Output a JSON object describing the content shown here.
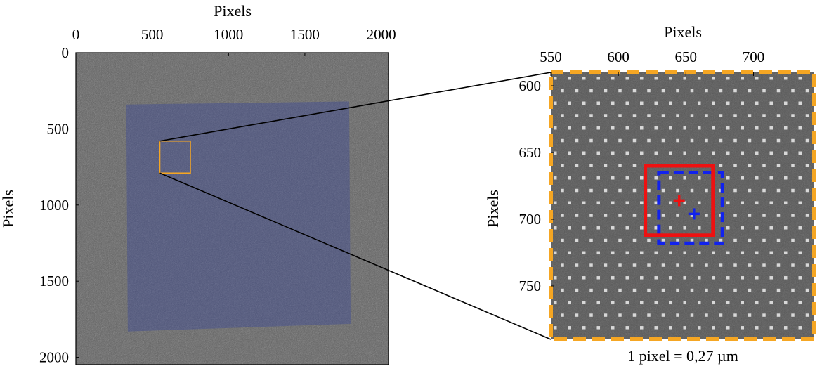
{
  "chart_data": [
    {
      "type": "image",
      "xlabel": "Pixels",
      "ylabel": "Pixels",
      "xlim": [
        0,
        2048
      ],
      "ylim": [
        0,
        2048
      ],
      "x_ticks": [
        "0",
        "500",
        "1000",
        "1500",
        "2000"
      ],
      "y_ticks": [
        "0",
        "500",
        "1000",
        "1500",
        "2000"
      ],
      "overlay_polygon": [
        [
          330,
          340
        ],
        [
          1790,
          320
        ],
        [
          1800,
          1780
        ],
        [
          340,
          1830
        ]
      ],
      "zoom_box": [
        550,
        580,
        750,
        790
      ],
      "colors": {
        "overlay": "#3f4a8c",
        "zoom_box": "#f5a623",
        "background": "#606060"
      }
    },
    {
      "type": "image",
      "xlabel": "Pixels",
      "ylabel": "Pixels",
      "xlim": [
        550,
        745
      ],
      "ylim": [
        590,
        790
      ],
      "x_ticks": [
        "550",
        "600",
        "650",
        "700"
      ],
      "y_ticks": [
        "600",
        "650",
        "700",
        "750"
      ],
      "red_box": [
        620,
        660,
        670,
        712
      ],
      "blue_box": [
        630,
        665,
        677,
        718
      ],
      "red_marker": [
        645,
        686
      ],
      "blue_marker": [
        656,
        696
      ],
      "note": "1 pixel = 0,27 µm",
      "colors": {
        "frame": "#f5a623",
        "red": "#ee1111",
        "blue": "#1122ee",
        "background": "#565656",
        "dots": "#d8d8d8"
      }
    }
  ]
}
